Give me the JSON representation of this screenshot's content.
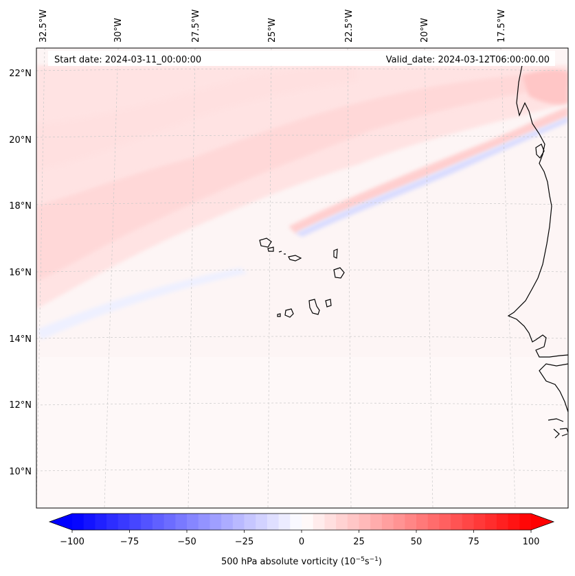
{
  "map": {
    "start_date": "Start date: 2024-03-11_00:00:00",
    "valid_date": "Valid_date: 2024-03-12T06:00:00.00",
    "lon_labels": [
      "32.5°W",
      "30°W",
      "27.5°W",
      "25°W",
      "22.5°W",
      "20°W",
      "17.5°W"
    ],
    "lat_labels": [
      "22°N",
      "20°N",
      "18°N",
      "16°N",
      "14°N",
      "12°N",
      "10°N"
    ],
    "gridlines": true,
    "colorbar": {
      "label_prefix": "500 hPa absolute vorticity (10",
      "exp1": "−5",
      "mid": "s",
      "exp2": "−1",
      "label_suffix": ")",
      "ticks": [
        "−100",
        "−75",
        "−50",
        "−25",
        "0",
        "25",
        "50",
        "75",
        "100"
      ],
      "min": -100,
      "max": 100,
      "colormap": "bwr",
      "low_color": "#0000ff",
      "mid_color": "#ffffff",
      "high_color": "#ff0000"
    },
    "colors": {
      "coast": "#000000",
      "grid": "#c8c8c8",
      "background": "#fdf6f6"
    }
  }
}
